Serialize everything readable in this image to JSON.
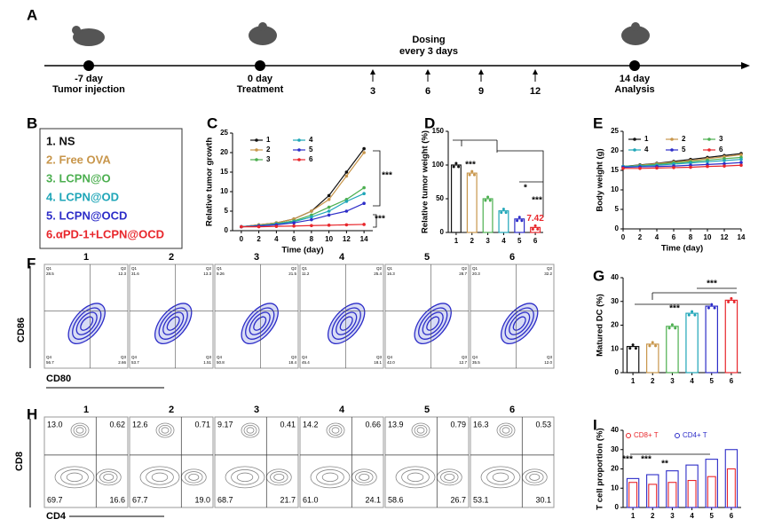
{
  "panel_labels": [
    "A",
    "B",
    "C",
    "D",
    "E",
    "F",
    "G",
    "H",
    "I"
  ],
  "timeline": {
    "events": [
      {
        "day": "-7 day",
        "label": "Tumor injection"
      },
      {
        "day": "0 day",
        "label": "Treatment"
      },
      {
        "day": "14 day",
        "label": "Analysis"
      }
    ],
    "dosing": [
      "Dosing",
      "every 3 days"
    ],
    "dose_days": [
      "3",
      "6",
      "9",
      "12"
    ]
  },
  "groups": [
    {
      "label": "1. NS",
      "color": "#111111"
    },
    {
      "label": "2. Free OVA",
      "color": "#c8964b"
    },
    {
      "label": "3. LCPN@O",
      "color": "#4caf50"
    },
    {
      "label": "4. LCPN@OD",
      "color": "#1fa6b8"
    },
    {
      "label": "5. LCPN@OCD",
      "color": "#2d2dc8"
    },
    {
      "label": "6.αPD-1+LCPN@OCD",
      "color": "#e8262b"
    }
  ],
  "chart_data": [
    {
      "type": "line",
      "y_label": "Relative tumor growth",
      "x_label": "Time (day)",
      "x": [
        0,
        2,
        4,
        6,
        8,
        10,
        12,
        14
      ],
      "xlim": [
        -1,
        15
      ],
      "xticks": [
        0,
        2,
        4,
        6,
        8,
        10,
        12,
        14
      ],
      "ylim": [
        0,
        25
      ],
      "yticks": [
        0,
        5,
        10,
        15,
        20,
        25
      ],
      "legend": "upper left",
      "annotations": [
        "***",
        "***"
      ],
      "series": [
        {
          "name": "1",
          "color": "#111111",
          "values": [
            1,
            1.5,
            2,
            3,
            5,
            9,
            15,
            21
          ]
        },
        {
          "name": "2",
          "color": "#c8964b",
          "values": [
            1,
            1.5,
            2,
            3,
            5,
            8,
            14,
            20
          ]
        },
        {
          "name": "3",
          "color": "#4caf50",
          "values": [
            1,
            1.3,
            1.8,
            2.5,
            4,
            6,
            8,
            11
          ]
        },
        {
          "name": "4",
          "color": "#1fa6b8",
          "values": [
            1,
            1.3,
            1.7,
            2.3,
            3.5,
            5,
            7.5,
            9.5
          ]
        },
        {
          "name": "5",
          "color": "#2d2dc8",
          "values": [
            1,
            1.2,
            1.5,
            2,
            2.8,
            4,
            5,
            7
          ]
        },
        {
          "name": "6",
          "color": "#e8262b",
          "values": [
            1,
            1,
            1.1,
            1.2,
            1.3,
            1.4,
            1.5,
            1.6
          ]
        }
      ]
    },
    {
      "type": "bar",
      "y_label": "Relative tumor weight (%)",
      "categories": [
        "1",
        "2",
        "3",
        "4",
        "5",
        "6"
      ],
      "values": [
        100,
        88,
        50,
        32,
        20,
        7.42
      ],
      "value_labels": [
        null,
        null,
        null,
        null,
        null,
        "7.42"
      ],
      "colors": [
        "#111111",
        "#c8964b",
        "#4caf50",
        "#1fa6b8",
        "#2d2dc8",
        "#e8262b"
      ],
      "ylim": [
        0,
        150
      ],
      "yticks": [
        0,
        50,
        100,
        150
      ],
      "annotations": [
        "***",
        "*",
        "***"
      ]
    },
    {
      "type": "line",
      "y_label": "Body weight (g)",
      "x_label": "Time (day)",
      "x": [
        0,
        2,
        4,
        6,
        8,
        10,
        12,
        14
      ],
      "xlim": [
        0,
        14
      ],
      "xticks": [
        0,
        2,
        4,
        6,
        8,
        10,
        12,
        14
      ],
      "ylim": [
        0,
        25
      ],
      "yticks": [
        0,
        5,
        10,
        15,
        20,
        25
      ],
      "legend": "upper left",
      "annotations": [],
      "series": [
        {
          "name": "1",
          "color": "#111111",
          "values": [
            16,
            16.4,
            16.8,
            17.3,
            17.8,
            18.3,
            18.8,
            19.3
          ]
        },
        {
          "name": "2",
          "color": "#c8964b",
          "values": [
            16,
            16.3,
            16.7,
            17.1,
            17.5,
            18,
            18.5,
            19
          ]
        },
        {
          "name": "3",
          "color": "#4caf50",
          "values": [
            16,
            16.2,
            16.5,
            16.9,
            17.2,
            17.6,
            18,
            18.3
          ]
        },
        {
          "name": "4",
          "color": "#1fa6b8",
          "values": [
            16,
            16.1,
            16.3,
            16.6,
            16.9,
            17.2,
            17.5,
            17.8
          ]
        },
        {
          "name": "5",
          "color": "#2d2dc8",
          "values": [
            15.8,
            15.9,
            16,
            16.1,
            16.3,
            16.5,
            16.7,
            17
          ]
        },
        {
          "name": "6",
          "color": "#e8262b",
          "values": [
            15.5,
            15.5,
            15.6,
            15.7,
            15.8,
            16,
            16.1,
            16.3
          ]
        }
      ]
    },
    {
      "type": "bar",
      "y_label": "Matured DC (%)",
      "categories": [
        "1",
        "2",
        "3",
        "4",
        "5",
        "6"
      ],
      "values": [
        11,
        12,
        19.5,
        25,
        28,
        30.5
      ],
      "colors": [
        "#111111",
        "#c8964b",
        "#4caf50",
        "#1fa6b8",
        "#2d2dc8",
        "#e8262b"
      ],
      "ylim": [
        0,
        40
      ],
      "yticks": [
        0,
        10,
        20,
        30,
        40
      ],
      "annotations": [
        "***",
        "***"
      ]
    },
    {
      "type": "bar",
      "y_label": "T cell proportion (%)",
      "categories": [
        "1",
        "2",
        "3",
        "4",
        "5",
        "6"
      ],
      "legend": "upper left",
      "ylim": [
        0,
        40
      ],
      "yticks": [
        0,
        10,
        20,
        30,
        40
      ],
      "annotations": [
        "***",
        "***",
        "**"
      ],
      "series": [
        {
          "name": "CD8+ T",
          "color": "#e8262b",
          "values": [
            13,
            12,
            13,
            14,
            16,
            20
          ]
        },
        {
          "name": "CD4+ T",
          "color": "#2d2dc8",
          "values": [
            15,
            17,
            19,
            22,
            25,
            30
          ]
        }
      ]
    }
  ],
  "flow_F": {
    "y_label": "CD86",
    "x_label": "CD80",
    "titles": [
      "1",
      "2",
      "3",
      "4",
      "5",
      "6"
    ],
    "quadrant_names": [
      "Q1",
      "Q2",
      "Q3",
      "Q4"
    ],
    "plots": [
      {
        "q1": "28.5",
        "q2": "12.3",
        "q3": "2.66",
        "q4": "56.7"
      },
      {
        "q1": "31.6",
        "q2": "13.3",
        "q3": "1.51",
        "q4": "53.7"
      },
      {
        "q1": "9.26",
        "q2": "21.5",
        "q3": "18.4",
        "q4": "50.8"
      },
      {
        "q1": "11.2",
        "q2": "25.4",
        "q3": "18.1",
        "q4": "45.4"
      },
      {
        "q1": "16.3",
        "q2": "28.7",
        "q3": "12.7",
        "q4": "42.0"
      },
      {
        "q1": "20.3",
        "q2": "32.2",
        "q3": "12.0",
        "q4": "35.5"
      }
    ]
  },
  "flow_H": {
    "y_label": "CD8",
    "x_label": "CD4",
    "titles": [
      "1",
      "2",
      "3",
      "4",
      "5",
      "6"
    ],
    "plots": [
      {
        "tl": "13.0",
        "tr": "0.62",
        "bl": "69.7",
        "br": "16.6"
      },
      {
        "tl": "12.6",
        "tr": "0.71",
        "bl": "67.7",
        "br": "19.0"
      },
      {
        "tl": "9.17",
        "tr": "0.41",
        "bl": "68.7",
        "br": "21.7"
      },
      {
        "tl": "14.2",
        "tr": "0.66",
        "bl": "61.0",
        "br": "24.1"
      },
      {
        "tl": "13.9",
        "tr": "0.79",
        "bl": "58.6",
        "br": "26.7"
      },
      {
        "tl": "16.3",
        "tr": "0.53",
        "bl": "53.1",
        "br": "30.1"
      }
    ]
  }
}
